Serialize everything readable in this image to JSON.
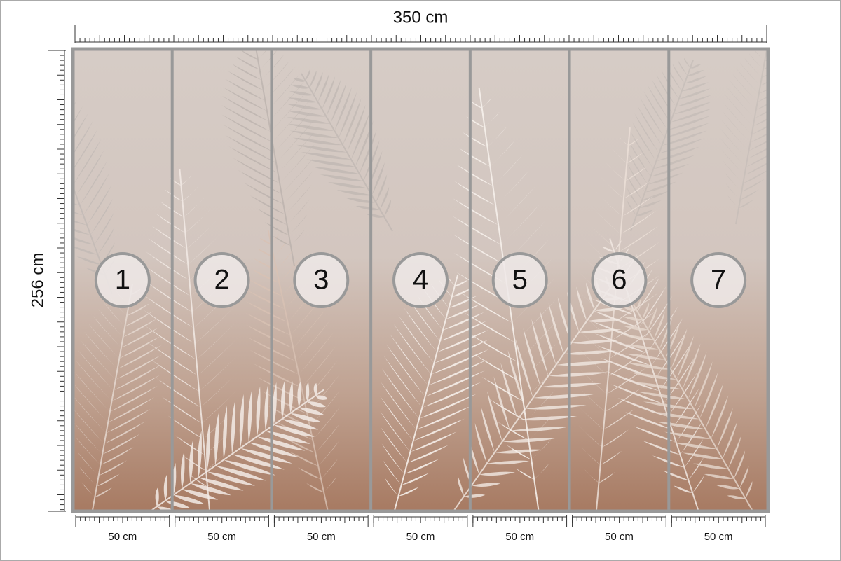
{
  "dimensions": {
    "width": "350 cm",
    "height": "256 cm"
  },
  "panels": [
    {
      "number": "1",
      "width": "50 cm"
    },
    {
      "number": "2",
      "width": "50 cm"
    },
    {
      "number": "3",
      "width": "50 cm"
    },
    {
      "number": "4",
      "width": "50 cm"
    },
    {
      "number": "5",
      "width": "50 cm"
    },
    {
      "number": "6",
      "width": "50 cm"
    },
    {
      "number": "7",
      "width": "50 cm"
    }
  ]
}
